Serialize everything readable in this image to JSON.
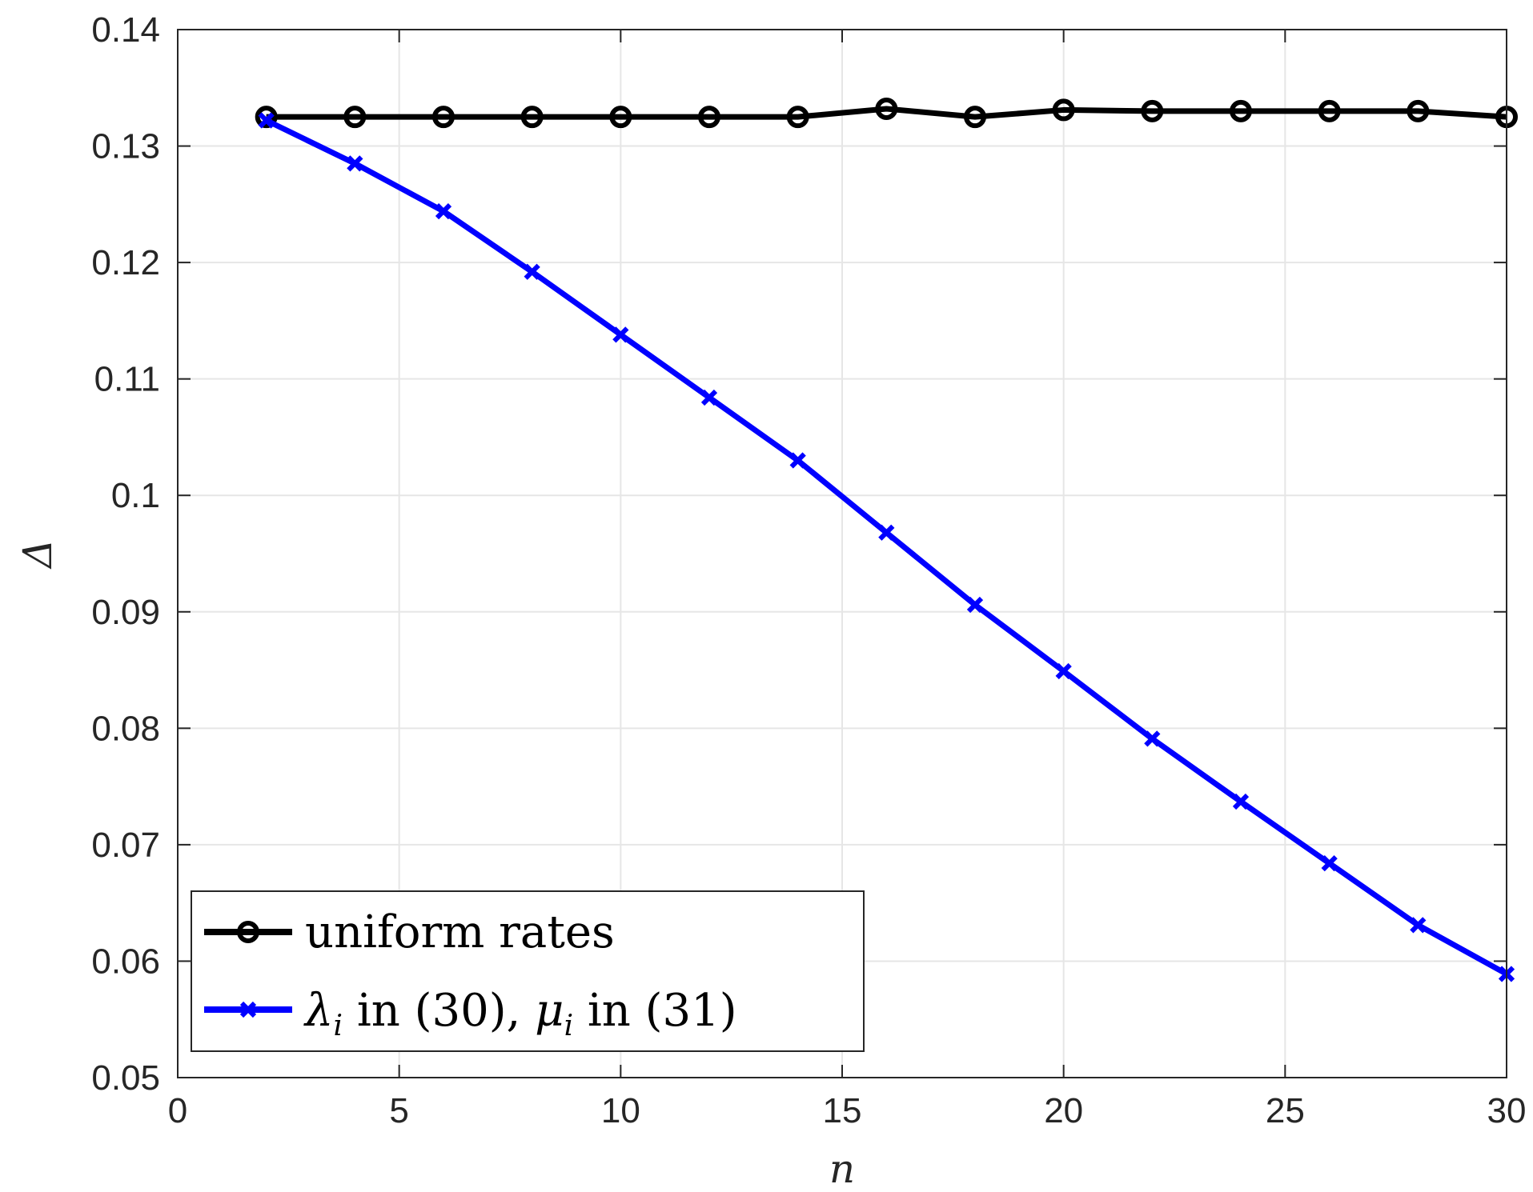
{
  "chart_data": {
    "type": "line",
    "xlabel": "n",
    "ylabel": "Δ",
    "xlim": [
      0,
      30
    ],
    "ylim": [
      0.05,
      0.14
    ],
    "xticks": [
      "0",
      "5",
      "10",
      "15",
      "20",
      "25",
      "30"
    ],
    "yticks": [
      "0.05",
      "0.06",
      "0.07",
      "0.08",
      "0.09",
      "0.1",
      "0.11",
      "0.12",
      "0.13",
      "0.14"
    ],
    "grid": true,
    "legend_position": "bottom-left",
    "x": [
      2,
      4,
      6,
      8,
      10,
      12,
      14,
      16,
      18,
      20,
      22,
      24,
      26,
      28,
      30
    ],
    "series": [
      {
        "name": "uniform rates",
        "color": "#000000",
        "marker": "circle",
        "values": [
          0.1325,
          0.1325,
          0.1325,
          0.1325,
          0.1325,
          0.1325,
          0.1325,
          0.1332,
          0.1325,
          0.1331,
          0.133,
          0.133,
          0.133,
          0.133,
          0.1325
        ]
      },
      {
        "name": "λi in (30), μi in (31)",
        "color": "#0000ff",
        "marker": "x",
        "values": [
          0.1322,
          0.1285,
          0.1244,
          0.1192,
          0.1138,
          0.1084,
          0.103,
          0.0968,
          0.0906,
          0.0849,
          0.0791,
          0.0737,
          0.0684,
          0.0631,
          0.0589
        ]
      }
    ]
  },
  "legend": {
    "entry1": {
      "text": "uniform rates"
    },
    "entry2": {
      "lambda": "λ",
      "sub1": "i",
      "mid": " in (30), ",
      "mu": "μ",
      "sub2": "i",
      "tail": " in (31)"
    }
  }
}
